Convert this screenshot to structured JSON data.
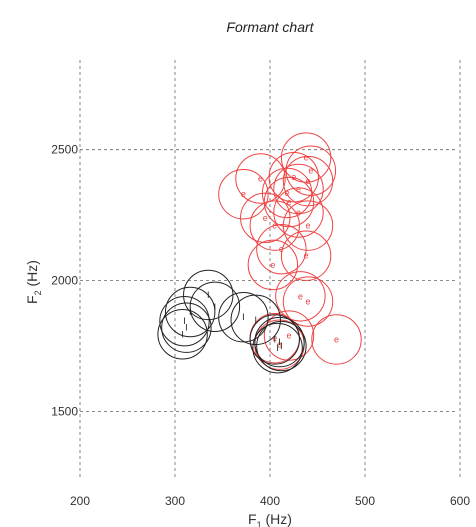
{
  "chart_data": {
    "type": "scatter",
    "title": "Formant chart",
    "xlabel": {
      "main": "F",
      "sub": "1",
      "unit": " (Hz)"
    },
    "ylabel": {
      "main": "F",
      "sub": "2",
      "unit": " (Hz)"
    },
    "xlim": [
      200,
      600
    ],
    "ylim": [
      1200,
      2900
    ],
    "xticks": [
      200,
      300,
      400,
      500,
      600
    ],
    "yticks": [
      1500,
      2000,
      2500
    ],
    "grid": true,
    "marker": "open-circle",
    "circle_radius_hz": 26,
    "series": [
      {
        "color": "#ee4444",
        "point_label": "e",
        "points": [
          {
            "x": 438,
            "y": 2470
          },
          {
            "x": 443,
            "y": 2420
          },
          {
            "x": 425,
            "y": 2395
          },
          {
            "x": 390,
            "y": 2390
          },
          {
            "x": 440,
            "y": 2380
          },
          {
            "x": 430,
            "y": 2350
          },
          {
            "x": 418,
            "y": 2335
          },
          {
            "x": 372,
            "y": 2330
          },
          {
            "x": 420,
            "y": 2300
          },
          {
            "x": 430,
            "y": 2260
          },
          {
            "x": 395,
            "y": 2240
          },
          {
            "x": 405,
            "y": 2210
          },
          {
            "x": 440,
            "y": 2210
          },
          {
            "x": 412,
            "y": 2120
          },
          {
            "x": 438,
            "y": 2095
          },
          {
            "x": 403,
            "y": 2060
          },
          {
            "x": 432,
            "y": 1940
          },
          {
            "x": 440,
            "y": 1920
          },
          {
            "x": 405,
            "y": 1780
          },
          {
            "x": 420,
            "y": 1790
          },
          {
            "x": 470,
            "y": 1775
          },
          {
            "x": 410,
            "y": 1755
          }
        ]
      },
      {
        "color": "#222222",
        "point_label": "I",
        "points": [
          {
            "x": 335,
            "y": 1945
          },
          {
            "x": 342,
            "y": 1900
          },
          {
            "x": 316,
            "y": 1880
          },
          {
            "x": 372,
            "y": 1860
          },
          {
            "x": 385,
            "y": 1850
          },
          {
            "x": 310,
            "y": 1845
          },
          {
            "x": 312,
            "y": 1820
          },
          {
            "x": 308,
            "y": 1795
          },
          {
            "x": 405,
            "y": 1775
          },
          {
            "x": 410,
            "y": 1765
          },
          {
            "x": 412,
            "y": 1750
          },
          {
            "x": 408,
            "y": 1742
          }
        ]
      }
    ]
  }
}
